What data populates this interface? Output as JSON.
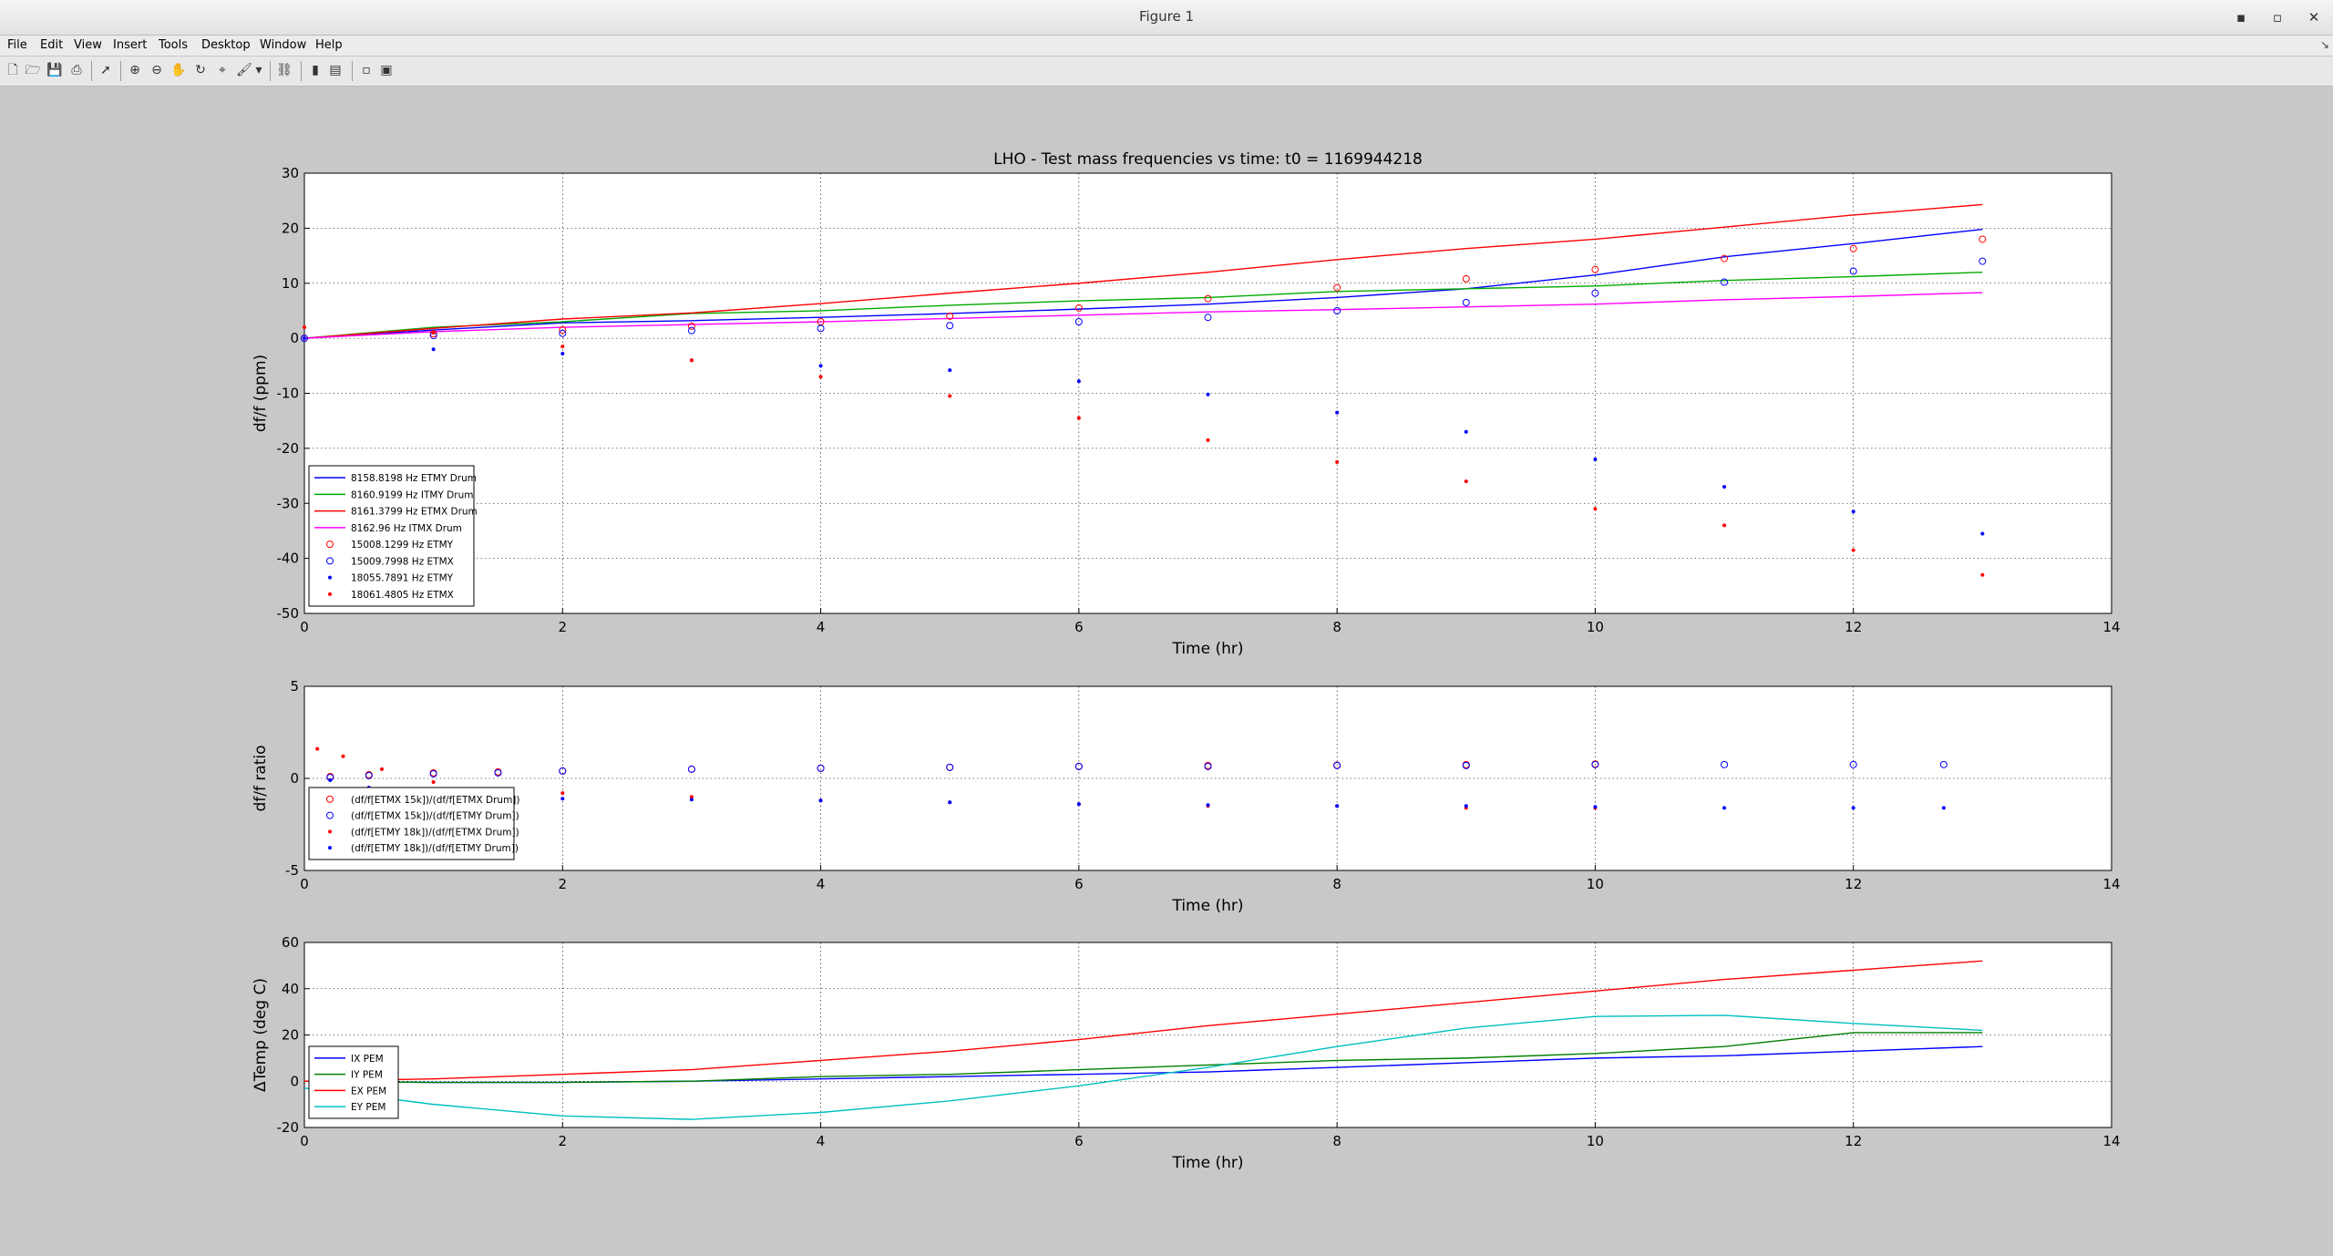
{
  "window": {
    "title": "Figure 1",
    "buttons": [
      "▪",
      "▫",
      "✕"
    ]
  },
  "menubar": {
    "items": [
      "File",
      "Edit",
      "View",
      "Insert",
      "Tools",
      "Desktop",
      "Window",
      "Help"
    ],
    "overflow_icon": "↘"
  },
  "toolbar": {
    "icons": [
      "new-figure-icon",
      "open-file-icon",
      "save-icon",
      "print-icon",
      "edit-plot-arrow-icon",
      "zoom-in-icon",
      "zoom-out-icon",
      "pan-hand-icon",
      "rotate-3d-icon",
      "data-cursor-icon",
      "brush-icon",
      "brush-dropdown-icon",
      "link-plot-icon",
      "insert-colorbar-icon",
      "insert-legend-icon",
      "hide-plot-tools-icon",
      "show-plot-tools-icon"
    ]
  },
  "colors": {
    "blue": "#0000ff",
    "green": "#00aa00",
    "red": "#ff0000",
    "magenta": "#ff00ff",
    "cyan": "#00bfbf",
    "darkgreen": "#007f00",
    "grid": "#000000"
  },
  "chart_data": [
    {
      "type": "line",
      "title": "LHO - Test mass frequencies vs time: t0 = 1169944218",
      "xlabel": "Time (hr)",
      "ylabel": "df/f (ppm)",
      "xlim": [
        0,
        14
      ],
      "ylim": [
        -50,
        30
      ],
      "xticks": [
        "0",
        "2",
        "4",
        "6",
        "8",
        "10",
        "12",
        "14"
      ],
      "yticks": [
        "-50",
        "-40",
        "-30",
        "-20",
        "-10",
        "0",
        "10",
        "20",
        "30"
      ],
      "grid": true,
      "legend_position": "bottom-left",
      "series": [
        {
          "name": "8158.8198 Hz ETMY Drum",
          "style": "line",
          "color": "#0000ff",
          "x": [
            0,
            1,
            2,
            3,
            4,
            5,
            6,
            7,
            8,
            9,
            10,
            11,
            12,
            13
          ],
          "y": [
            0,
            1.5,
            2.8,
            3.2,
            3.8,
            4.5,
            5.3,
            6.2,
            7.4,
            9.0,
            11.5,
            14.8,
            17.2,
            19.8
          ]
        },
        {
          "name": "8160.9199 Hz ITMY Drum",
          "style": "line",
          "color": "#00aa00",
          "x": [
            0,
            1,
            2,
            3,
            4,
            5,
            6,
            7,
            8,
            9,
            10,
            11,
            12,
            13
          ],
          "y": [
            0,
            2.0,
            3.0,
            4.5,
            5.0,
            6.0,
            6.8,
            7.4,
            8.5,
            9.0,
            9.5,
            10.5,
            11.2,
            12.0
          ]
        },
        {
          "name": "8161.3799 Hz ETMX Drum",
          "style": "line",
          "color": "#ff0000",
          "x": [
            0,
            1,
            2,
            3,
            4,
            5,
            6,
            7,
            8,
            9,
            10,
            11,
            12,
            13
          ],
          "y": [
            0,
            1.8,
            3.5,
            4.6,
            6.3,
            8.2,
            10.0,
            12.0,
            14.3,
            16.3,
            18.0,
            20.2,
            22.4,
            24.3
          ]
        },
        {
          "name": "8162.96 Hz ITMX Drum",
          "style": "line",
          "color": "#ff00ff",
          "x": [
            0,
            1,
            2,
            3,
            4,
            5,
            6,
            7,
            8,
            9,
            10,
            11,
            12,
            13
          ],
          "y": [
            0,
            1.2,
            2.0,
            2.5,
            3.0,
            3.6,
            4.2,
            4.8,
            5.2,
            5.7,
            6.2,
            7.0,
            7.6,
            8.3
          ]
        },
        {
          "name": "15008.1299 Hz ETMY",
          "style": "circle",
          "color": "#ff0000",
          "x": [
            0,
            1,
            2,
            3,
            4,
            5,
            6,
            7,
            8,
            9,
            10,
            11,
            12,
            13
          ],
          "y": [
            0,
            0.8,
            1.5,
            2.2,
            3.0,
            4.0,
            5.5,
            7.2,
            9.2,
            10.8,
            12.5,
            14.5,
            16.3,
            18.0
          ]
        },
        {
          "name": "15009.7998 Hz ETMX",
          "style": "circle",
          "color": "#0000ff",
          "x": [
            0,
            1,
            2,
            3,
            4,
            5,
            6,
            7,
            8,
            9,
            10,
            11,
            12,
            13
          ],
          "y": [
            0,
            0.5,
            0.9,
            1.4,
            1.8,
            2.3,
            3.0,
            3.8,
            5.0,
            6.5,
            8.2,
            10.2,
            12.2,
            14.0
          ]
        },
        {
          "name": "18055.7891 Hz ETMY",
          "style": "dot",
          "color": "#0000ff",
          "x": [
            0,
            1,
            2,
            3,
            4,
            5,
            6,
            7,
            8,
            9,
            10,
            11,
            12,
            13
          ],
          "y": [
            0,
            -2.0,
            -2.8,
            -4.0,
            -5.0,
            -5.8,
            -7.8,
            -10.2,
            -13.5,
            -17.0,
            -22.0,
            -27.0,
            -31.5,
            -35.5
          ]
        },
        {
          "name": "18061.4805 Hz ETMX",
          "style": "dot",
          "color": "#ff0000",
          "x": [
            0,
            1,
            2,
            3,
            4,
            5,
            6,
            7,
            8,
            9,
            10,
            11,
            12,
            13
          ],
          "y": [
            2,
            1,
            -1.5,
            -4.0,
            -7.0,
            -10.5,
            -14.5,
            -18.5,
            -22.5,
            -26.0,
            -31.0,
            -34.0,
            -38.5,
            -43.0
          ]
        }
      ]
    },
    {
      "type": "scatter",
      "title": "",
      "xlabel": "Time (hr)",
      "ylabel": "df/f ratio",
      "xlim": [
        0,
        14
      ],
      "ylim": [
        -5,
        5
      ],
      "xticks": [
        "0",
        "2",
        "4",
        "6",
        "8",
        "10",
        "12",
        "14"
      ],
      "yticks": [
        "-5",
        "0",
        "5"
      ],
      "grid": true,
      "legend_position": "bottom-left",
      "series": [
        {
          "name": "(df/f[ETMX 15k])/(df/f[ETMX Drum])",
          "style": "circle",
          "color": "#ff0000",
          "x": [
            0.2,
            0.5,
            1,
            1.5,
            2,
            3,
            4,
            5,
            6,
            7,
            8,
            9,
            10
          ],
          "y": [
            0.1,
            0.2,
            0.3,
            0.35,
            0.4,
            0.5,
            0.55,
            0.6,
            0.65,
            0.7,
            0.72,
            0.75,
            0.78
          ]
        },
        {
          "name": "(df/f[ETMX 15k])/(df/f[ETMY Drum])",
          "style": "circle",
          "color": "#0000ff",
          "x": [
            0.2,
            0.5,
            1,
            1.5,
            2,
            3,
            4,
            5,
            6,
            7,
            8,
            9,
            10,
            11,
            12,
            12.7
          ],
          "y": [
            0.05,
            0.15,
            0.25,
            0.3,
            0.4,
            0.5,
            0.55,
            0.6,
            0.65,
            0.65,
            0.7,
            0.7,
            0.75,
            0.75,
            0.75,
            0.75
          ]
        },
        {
          "name": "(df/f[ETMY 18k])/(df/f[ETMX Drum])",
          "style": "dot",
          "color": "#ff0000",
          "x": [
            0.1,
            0.3,
            0.6,
            1,
            1.5,
            2,
            3,
            4,
            5,
            6,
            7,
            8,
            9,
            10
          ],
          "y": [
            1.6,
            1.2,
            0.5,
            -0.2,
            -0.6,
            -0.8,
            -1.0,
            -1.2,
            -1.3,
            -1.4,
            -1.5,
            -1.5,
            -1.6,
            -1.6
          ]
        },
        {
          "name": "(df/f[ETMY 18k])/(df/f[ETMY Drum])",
          "style": "dot",
          "color": "#0000ff",
          "x": [
            0.2,
            0.5,
            1,
            1.5,
            2,
            3,
            4,
            5,
            6,
            7,
            8,
            9,
            10,
            11,
            12,
            12.7
          ],
          "y": [
            -0.1,
            -0.5,
            -0.8,
            -1.0,
            -1.1,
            -1.15,
            -1.2,
            -1.3,
            -1.4,
            -1.45,
            -1.5,
            -1.5,
            -1.55,
            -1.6,
            -1.6,
            -1.6
          ]
        }
      ]
    },
    {
      "type": "line",
      "title": "",
      "xlabel": "Time (hr)",
      "ylabel": "ΔTemp (deg C)",
      "xlim": [
        0,
        14
      ],
      "ylim": [
        -20,
        60
      ],
      "xticks": [
        "0",
        "2",
        "4",
        "6",
        "8",
        "10",
        "12",
        "14"
      ],
      "yticks": [
        "-20",
        "0",
        "20",
        "40",
        "60"
      ],
      "grid": true,
      "legend_position": "bottom-left",
      "series": [
        {
          "name": "IX PEM",
          "style": "line",
          "color": "#0000ff",
          "x": [
            0,
            1,
            2,
            3,
            4,
            5,
            6,
            7,
            8,
            9,
            10,
            11,
            12,
            13
          ],
          "y": [
            0,
            -0.5,
            -0.5,
            0,
            1,
            2,
            3,
            4,
            6,
            8,
            10,
            11,
            13,
            15
          ]
        },
        {
          "name": "IY PEM",
          "style": "line",
          "color": "#007f00",
          "x": [
            0,
            1,
            2,
            3,
            4,
            5,
            6,
            7,
            8,
            9,
            10,
            11,
            12,
            13
          ],
          "y": [
            0,
            -0.5,
            -0.5,
            0,
            2,
            3,
            5,
            7,
            9,
            10,
            12,
            15,
            21,
            21
          ]
        },
        {
          "name": "EX PEM",
          "style": "line",
          "color": "#ff0000",
          "x": [
            0,
            1,
            2,
            3,
            4,
            5,
            6,
            7,
            8,
            9,
            10,
            11,
            12,
            13
          ],
          "y": [
            0,
            1,
            3,
            5,
            9,
            13,
            18,
            24,
            29,
            34,
            39,
            44,
            48,
            52
          ]
        },
        {
          "name": "EY PEM",
          "style": "line",
          "color": "#00bfbf",
          "x": [
            0,
            1,
            2,
            3,
            4,
            5,
            6,
            7,
            8,
            9,
            10,
            11,
            12,
            13
          ],
          "y": [
            -3,
            -10,
            -15,
            -16.5,
            -13.5,
            -8.5,
            -2,
            6,
            15,
            23,
            28,
            28.5,
            25,
            22
          ]
        }
      ]
    }
  ]
}
